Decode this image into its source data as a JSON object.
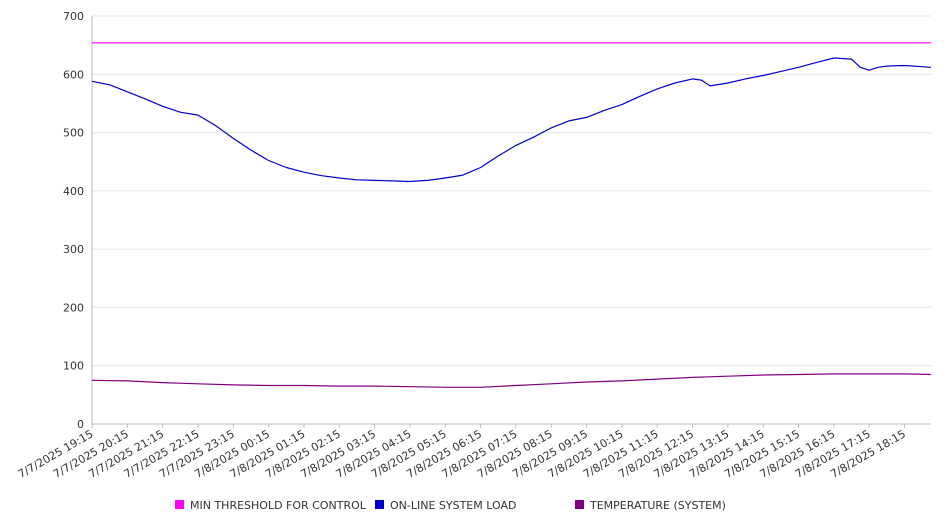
{
  "chart_data": {
    "type": "line",
    "title": "",
    "xlabel": "",
    "ylabel": "",
    "ylim": [
      0,
      700
    ],
    "yticks": [
      0,
      100,
      200,
      300,
      400,
      500,
      600,
      700
    ],
    "x_tick_labels": [
      "7/7/2025 19:15",
      "7/7/2025 20:15",
      "7/7/2025 21:15",
      "7/7/2025 22:15",
      "7/7/2025 23:15",
      "7/8/2025 00:15",
      "7/8/2025 01:15",
      "7/8/2025 02:15",
      "7/8/2025 03:15",
      "7/8/2025 04:15",
      "7/8/2025 05:15",
      "7/8/2025 06:15",
      "7/8/2025 07:15",
      "7/8/2025 08:15",
      "7/8/2025 09:15",
      "7/8/2025 10:15",
      "7/8/2025 11:15",
      "7/8/2025 12:15",
      "7/8/2025 13:15",
      "7/8/2025 14:15",
      "7/8/2025 15:15",
      "7/8/2025 16:15",
      "7/8/2025 17:15",
      "7/8/2025 18:15"
    ],
    "grid": "horizontal",
    "legend_position": "bottom",
    "series": [
      {
        "name": "MIN THRESHOLD FOR CONTROL",
        "color": "#ff00ff",
        "x": [
          "7/7/2025 19:15",
          "7/8/2025 19:00"
        ],
        "values": [
          654,
          654
        ]
      },
      {
        "name": "ON-LINE SYSTEM LOAD",
        "color": "#0000cc",
        "x": [
          "7/7/2025 19:15",
          "7/7/2025 19:45",
          "7/7/2025 20:15",
          "7/7/2025 20:45",
          "7/7/2025 21:15",
          "7/7/2025 21:45",
          "7/7/2025 22:15",
          "7/7/2025 22:45",
          "7/7/2025 23:15",
          "7/7/2025 23:45",
          "7/8/2025 00:15",
          "7/8/2025 00:45",
          "7/8/2025 01:15",
          "7/8/2025 01:45",
          "7/8/2025 02:15",
          "7/8/2025 02:45",
          "7/8/2025 03:15",
          "7/8/2025 03:45",
          "7/8/2025 04:15",
          "7/8/2025 04:45",
          "7/8/2025 05:15",
          "7/8/2025 05:45",
          "7/8/2025 06:15",
          "7/8/2025 06:45",
          "7/8/2025 07:15",
          "7/8/2025 07:45",
          "7/8/2025 08:15",
          "7/8/2025 08:45",
          "7/8/2025 09:15",
          "7/8/2025 09:45",
          "7/8/2025 10:15",
          "7/8/2025 10:45",
          "7/8/2025 11:15",
          "7/8/2025 11:45",
          "7/8/2025 12:15",
          "7/8/2025 12:30",
          "7/8/2025 12:45",
          "7/8/2025 13:15",
          "7/8/2025 13:45",
          "7/8/2025 14:15",
          "7/8/2025 14:45",
          "7/8/2025 15:15",
          "7/8/2025 15:45",
          "7/8/2025 16:15",
          "7/8/2025 16:45",
          "7/8/2025 17:00",
          "7/8/2025 17:15",
          "7/8/2025 17:30",
          "7/8/2025 17:45",
          "7/8/2025 18:15",
          "7/8/2025 18:45",
          "7/8/2025 19:00"
        ],
        "values": [
          588,
          582,
          570,
          558,
          545,
          535,
          530,
          512,
          490,
          470,
          452,
          440,
          432,
          426,
          422,
          419,
          418,
          417,
          416,
          418,
          422,
          427,
          440,
          460,
          478,
          492,
          508,
          520,
          526,
          538,
          548,
          562,
          575,
          585,
          592,
          590,
          580,
          585,
          592,
          598,
          605,
          612,
          620,
          628,
          626,
          612,
          607,
          612,
          614,
          615,
          613,
          612
        ]
      },
      {
        "name": "TEMPERATURE (SYSTEM)",
        "color": "#800080",
        "x": [
          "7/7/2025 19:15",
          "7/7/2025 20:15",
          "7/7/2025 21:15",
          "7/7/2025 22:15",
          "7/7/2025 23:15",
          "7/8/2025 00:15",
          "7/8/2025 01:15",
          "7/8/2025 02:15",
          "7/8/2025 03:15",
          "7/8/2025 04:15",
          "7/8/2025 05:15",
          "7/8/2025 06:15",
          "7/8/2025 07:15",
          "7/8/2025 08:15",
          "7/8/2025 09:15",
          "7/8/2025 10:15",
          "7/8/2025 11:15",
          "7/8/2025 12:15",
          "7/8/2025 13:15",
          "7/8/2025 14:15",
          "7/8/2025 15:15",
          "7/8/2025 16:15",
          "7/8/2025 17:15",
          "7/8/2025 18:15",
          "7/8/2025 19:00"
        ],
        "values": [
          75,
          74,
          71,
          69,
          67,
          66,
          66,
          65,
          65,
          64,
          63,
          63,
          66,
          69,
          72,
          74,
          77,
          80,
          82,
          84,
          85,
          86,
          86,
          86,
          85
        ]
      }
    ]
  }
}
